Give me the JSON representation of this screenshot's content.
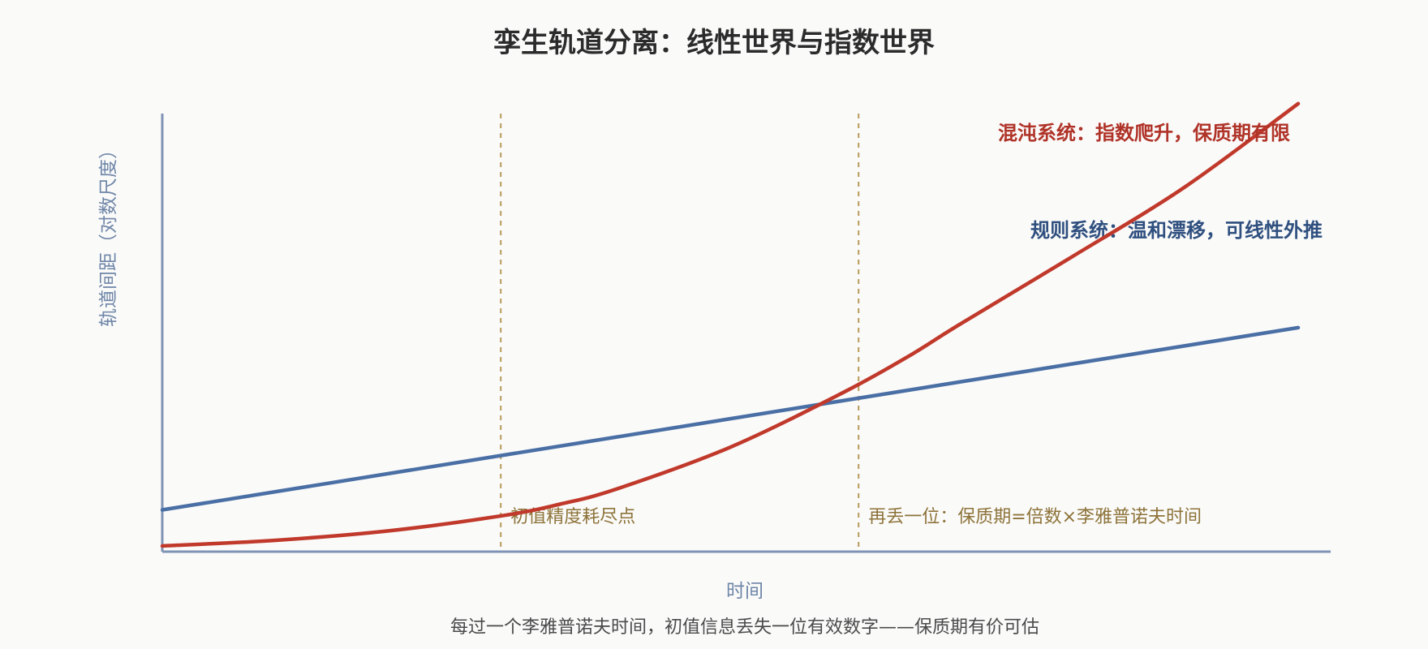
{
  "chart_data": {
    "type": "line",
    "title": "孪生轨道分离：线性世界与指数世界",
    "xlabel": "时间",
    "ylabel": "轨道间距（对数尺度）",
    "caption": "每过一个李雅普诺夫时间，初值信息丢失一位有效数字——保质期有价可估",
    "xlim": [
      0,
      10
    ],
    "ylim": [
      0,
      10
    ],
    "grid": false,
    "series": [
      {
        "name": "规则系统：温和漂移，可线性外推",
        "color": "#4a6fa5",
        "x": [
          0,
          10
        ],
        "y": [
          1.1,
          5.9
        ]
      },
      {
        "name": "混沌系统：指数爬升，保质期有限",
        "color": "#c0392b",
        "x": [
          0,
          1,
          2,
          3,
          3.5,
          4,
          5,
          6,
          6.6,
          7,
          8,
          9,
          10
        ],
        "y": [
          0.15,
          0.3,
          0.55,
          0.95,
          1.25,
          1.65,
          2.75,
          4.2,
          5.2,
          5.95,
          7.75,
          9.6,
          11.8
        ]
      }
    ],
    "vlines": [
      {
        "x": 2.98,
        "label": "初值精度耗尽点",
        "color": "#b89a5a"
      },
      {
        "x": 6.13,
        "label": "再丢一位：保质期=倍数×李雅普诺夫时间",
        "color": "#b89a5a"
      }
    ],
    "axis_color": "#7f93b5"
  }
}
